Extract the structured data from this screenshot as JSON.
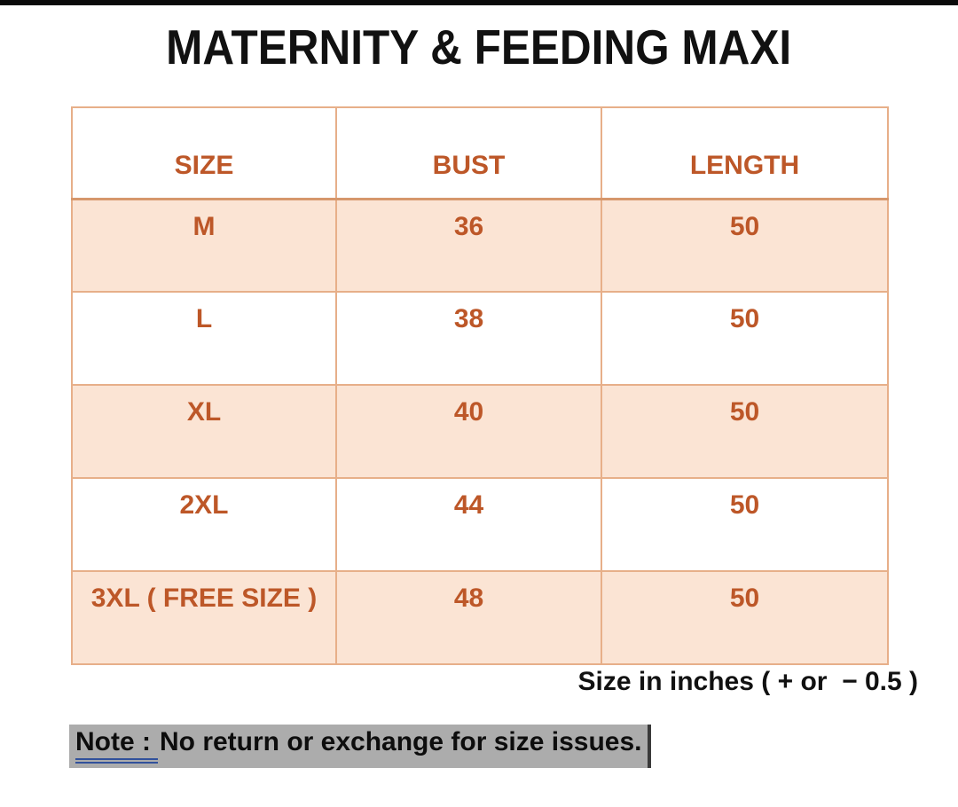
{
  "page": {
    "title": "MATERNITY & FEEDING MAXI",
    "footnote": "Size in inches ( + or  − 0.5 )",
    "note": {
      "label": "Note :",
      "text": "No return or exchange for size issues."
    }
  },
  "table": {
    "headers": [
      "SIZE",
      "BUST",
      "LENGTH"
    ],
    "rows": [
      {
        "size": "M",
        "bust": "36",
        "length": "50"
      },
      {
        "size": "L",
        "bust": "38",
        "length": "50"
      },
      {
        "size": "XL",
        "bust": "40",
        "length": "50"
      },
      {
        "size": "2XL",
        "bust": "44",
        "length": "50"
      },
      {
        "size": "3XL ( FREE SIZE )",
        "bust": "48",
        "length": "50"
      }
    ],
    "units_note": "inches",
    "tolerance": "+ or - 0.5"
  },
  "colors": {
    "accent_text": "#bd5728",
    "row_fill": "#fbe4d4",
    "table_border": "#e7af89",
    "header_rule": "#d6976c",
    "note_highlight": "#acacac",
    "note_underline": "#31519b",
    "text_cursor": "#3a3a3a",
    "top_bar": "#0a0a0a"
  }
}
